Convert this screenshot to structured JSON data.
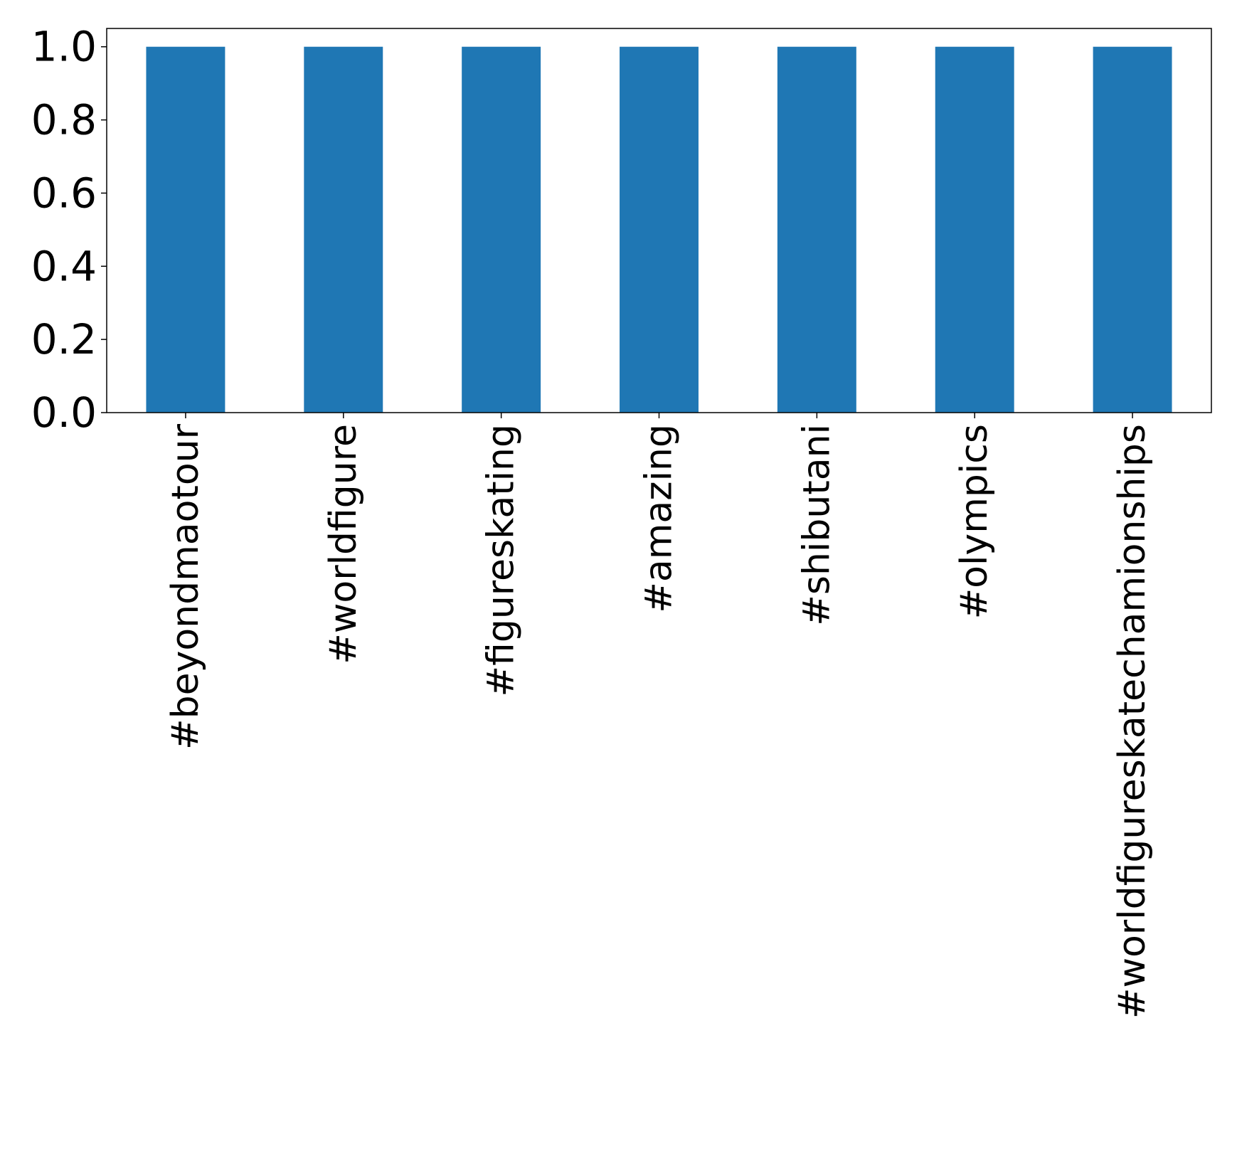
{
  "chart_data": {
    "type": "bar",
    "categories": [
      "#beyondmaotour",
      "#worldfigure",
      "#figureskating",
      "#amazing",
      "#shibutani",
      "#olympics",
      "#worldfigureskatechamionships"
    ],
    "values": [
      1.0,
      1.0,
      1.0,
      1.0,
      1.0,
      1.0,
      1.0
    ],
    "ylim": [
      0,
      1.05
    ],
    "yticks": [
      "0.0",
      "0.2",
      "0.4",
      "0.6",
      "0.8",
      "1.0"
    ],
    "grid": false,
    "legend": false,
    "x_tick_rotation": "vertical",
    "colors": {
      "bar": "#1f77b4",
      "axis": "#000000",
      "background": "#ffffff"
    }
  }
}
